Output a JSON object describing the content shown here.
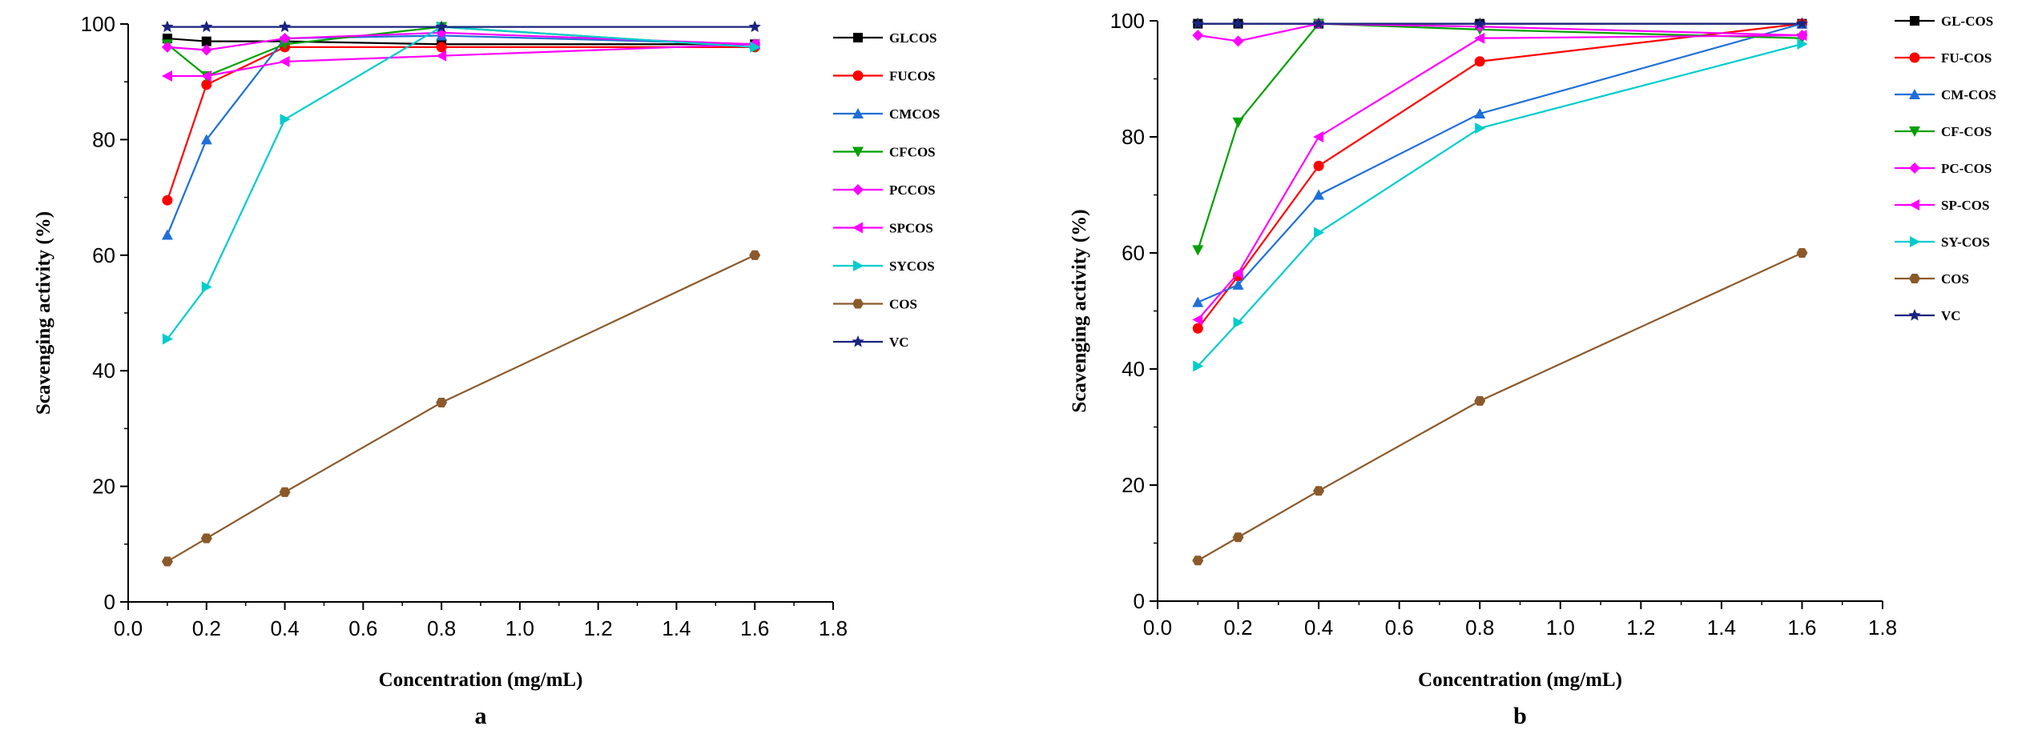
{
  "chart_data": [
    {
      "type": "line",
      "panel_label": "a",
      "title": "",
      "xlabel": "Concentration (mg/mL)",
      "ylabel": "Scavenging activity (%)",
      "xlim": [
        0.0,
        1.8
      ],
      "ylim": [
        0,
        100
      ],
      "x_ticks": [
        "0.0",
        "0.2",
        "0.4",
        "0.6",
        "0.8",
        "1.0",
        "1.2",
        "1.4",
        "1.6",
        "1.8"
      ],
      "y_ticks": [
        "0",
        "20",
        "40",
        "60",
        "80",
        "100"
      ],
      "legend_position": "right",
      "x": [
        0.1,
        0.2,
        0.4,
        0.8,
        1.6
      ],
      "series": [
        {
          "name": "GLCOS",
          "color": "#000000",
          "marker": "square",
          "values": [
            97.5,
            97.0,
            97.0,
            96.5,
            96.5
          ]
        },
        {
          "name": "FUCOS",
          "color": "#ff0000",
          "marker": "circle",
          "values": [
            69.5,
            89.5,
            96.0,
            96.0,
            96.0
          ]
        },
        {
          "name": "CMCOS",
          "color": "#1e6fd9",
          "marker": "triangle-up",
          "values": [
            63.5,
            80.0,
            97.5,
            98.0,
            96.5
          ]
        },
        {
          "name": "CFCOS",
          "color": "#00a000",
          "marker": "triangle-down",
          "values": [
            96.5,
            91.0,
            96.5,
            99.5,
            96.0
          ]
        },
        {
          "name": "PCCOS",
          "color": "#ff00ff",
          "marker": "diamond",
          "values": [
            96.0,
            95.5,
            97.5,
            98.5,
            96.5
          ]
        },
        {
          "name": "SPCOS",
          "color": "#ff00ff",
          "marker": "triangle-left",
          "values": [
            91.0,
            91.0,
            93.5,
            94.5,
            96.5
          ]
        },
        {
          "name": "SYCOS",
          "color": "#00cccc",
          "marker": "triangle-right",
          "values": [
            45.5,
            54.5,
            83.5,
            99.5,
            96.0
          ]
        },
        {
          "name": "COS",
          "color": "#8b5a2b",
          "marker": "hexagon",
          "values": [
            7.0,
            11.0,
            19.0,
            34.5,
            60.0
          ]
        },
        {
          "name": "VC",
          "color": "#1a237e",
          "marker": "star",
          "values": [
            99.5,
            99.5,
            99.5,
            99.5,
            99.5
          ]
        }
      ]
    },
    {
      "type": "line",
      "panel_label": "b",
      "title": "",
      "xlabel": "Concentration (mg/mL)",
      "ylabel": "Scavenging activity (%)",
      "xlim": [
        0.0,
        1.8
      ],
      "ylim": [
        0,
        100
      ],
      "x_ticks": [
        "0.0",
        "0.2",
        "0.4",
        "0.6",
        "0.8",
        "1.0",
        "1.2",
        "1.4",
        "1.6",
        "1.8"
      ],
      "y_ticks": [
        "0",
        "20",
        "40",
        "60",
        "80",
        "100"
      ],
      "legend_position": "right",
      "x": [
        0.1,
        0.2,
        0.4,
        0.8,
        1.6
      ],
      "series": [
        {
          "name": "GL-COS",
          "color": "#000000",
          "marker": "square",
          "values": [
            99.5,
            99.5,
            99.5,
            99.5,
            99.5
          ]
        },
        {
          "name": "FU-COS",
          "color": "#ff0000",
          "marker": "circle",
          "values": [
            47.0,
            56.0,
            75.0,
            93.0,
            99.5
          ]
        },
        {
          "name": "CM-COS",
          "color": "#1e6fd9",
          "marker": "triangle-up",
          "values": [
            51.5,
            54.5,
            70.0,
            84.0,
            99.5
          ]
        },
        {
          "name": "CF-COS",
          "color": "#00a000",
          "marker": "triangle-down",
          "values": [
            60.5,
            82.5,
            99.5,
            98.5,
            97.0
          ]
        },
        {
          "name": "PC-COS",
          "color": "#ff00ff",
          "marker": "diamond",
          "values": [
            97.5,
            96.5,
            99.5,
            99.0,
            97.5
          ]
        },
        {
          "name": "SP-COS",
          "color": "#ff00ff",
          "marker": "triangle-left",
          "values": [
            48.5,
            56.5,
            80.0,
            97.0,
            97.5
          ]
        },
        {
          "name": "SY-COS",
          "color": "#00cccc",
          "marker": "triangle-right",
          "values": [
            40.5,
            48.0,
            63.5,
            81.5,
            96.0
          ]
        },
        {
          "name": "COS",
          "color": "#8b5a2b",
          "marker": "hexagon",
          "values": [
            7.0,
            11.0,
            19.0,
            34.5,
            60.0
          ]
        },
        {
          "name": "VC",
          "color": "#1a237e",
          "marker": "star",
          "values": [
            99.5,
            99.5,
            99.5,
            99.5,
            99.5
          ]
        }
      ]
    }
  ]
}
